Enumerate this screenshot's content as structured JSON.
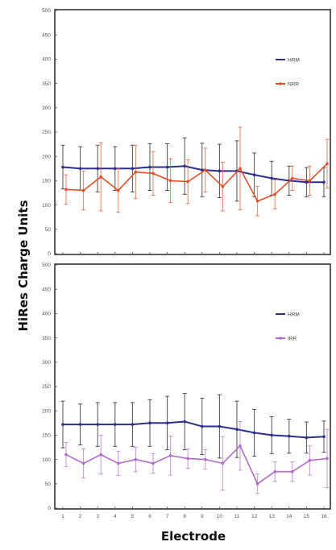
{
  "chart_data": [
    {
      "type": "line",
      "ylim": [
        0,
        500
      ],
      "yticks": [
        0,
        50,
        100,
        150,
        200,
        250,
        300,
        350,
        400,
        450,
        500
      ],
      "x": [
        1,
        2,
        3,
        4,
        5,
        6,
        7,
        8,
        9,
        10,
        11,
        12,
        13,
        14,
        15,
        16
      ],
      "legend_position": "top-right",
      "series": [
        {
          "name": "HRM",
          "color": "#2e2e8c",
          "values": [
            178,
            175,
            175,
            175,
            175,
            178,
            178,
            180,
            172,
            170,
            170,
            162,
            155,
            150,
            147,
            147
          ],
          "error": [
            45,
            45,
            48,
            45,
            48,
            48,
            48,
            58,
            55,
            55,
            62,
            45,
            35,
            30,
            30,
            30
          ]
        },
        {
          "name": "NRR",
          "color": "#e0502a",
          "values": [
            132,
            130,
            158,
            130,
            168,
            165,
            150,
            148,
            172,
            138,
            175,
            108,
            122,
            155,
            150,
            185
          ],
          "error": [
            30,
            40,
            70,
            45,
            55,
            45,
            45,
            45,
            45,
            50,
            85,
            30,
            30,
            25,
            30,
            50
          ]
        }
      ]
    },
    {
      "type": "line",
      "ylim": [
        0,
        500
      ],
      "yticks": [
        0,
        50,
        100,
        150,
        200,
        250,
        300,
        350,
        400,
        450,
        500
      ],
      "x": [
        1,
        2,
        3,
        4,
        5,
        6,
        7,
        8,
        9,
        10,
        11,
        12,
        13,
        14,
        15,
        16
      ],
      "xlabel": "Electrode",
      "legend_position": "top-right",
      "series": [
        {
          "name": "HRM",
          "color": "#2e2e8c",
          "values": [
            172,
            172,
            172,
            172,
            172,
            175,
            175,
            178,
            168,
            168,
            162,
            155,
            150,
            148,
            145,
            147
          ],
          "error": [
            48,
            42,
            45,
            45,
            45,
            48,
            55,
            58,
            58,
            65,
            58,
            48,
            38,
            35,
            32,
            32
          ]
        },
        {
          "name": "IRR",
          "color": "#b06ac8",
          "values": [
            110,
            92,
            110,
            92,
            100,
            92,
            108,
            102,
            100,
            92,
            128,
            50,
            75,
            75,
            98,
            102
          ],
          "error": [
            25,
            30,
            40,
            25,
            25,
            20,
            40,
            20,
            20,
            55,
            50,
            20,
            20,
            20,
            30,
            60
          ]
        }
      ]
    }
  ],
  "ylabel": "HiRes Charge Units",
  "xlabel": "Electrode"
}
